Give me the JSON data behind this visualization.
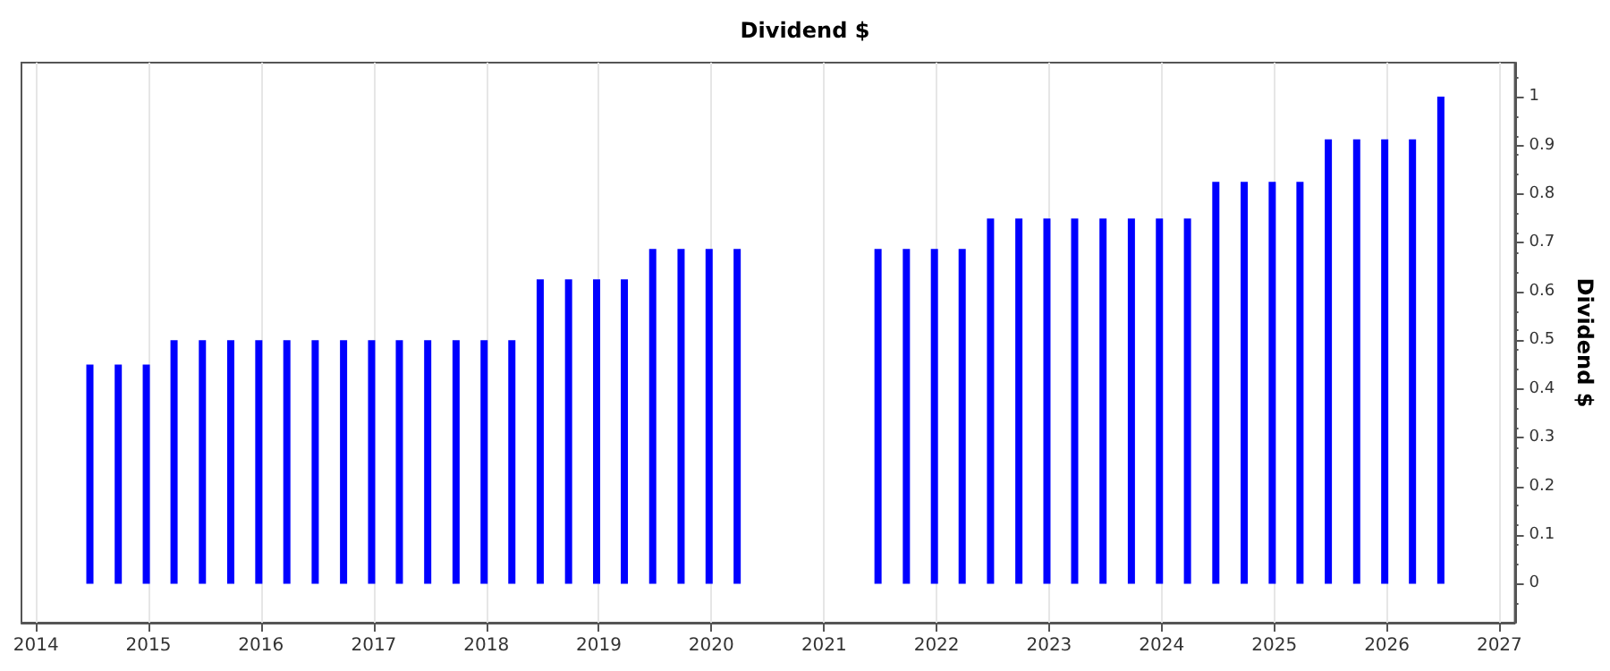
{
  "chart_data": {
    "type": "bar",
    "title": "Dividend $",
    "ylabel": "Dividend $",
    "x": [
      "2014-06-25",
      "2014-09-25",
      "2014-12-25",
      "2015-03-25",
      "2015-06-25",
      "2015-09-25",
      "2015-12-25",
      "2016-03-25",
      "2016-06-25",
      "2016-09-25",
      "2016-12-25",
      "2017-03-25",
      "2017-06-25",
      "2017-09-25",
      "2017-12-25",
      "2018-03-25",
      "2018-06-25",
      "2018-09-25",
      "2018-12-25",
      "2019-03-25",
      "2019-06-25",
      "2019-09-25",
      "2019-12-25",
      "2020-03-25",
      "2021-06-25",
      "2021-09-25",
      "2021-12-25",
      "2022-03-25",
      "2022-06-25",
      "2022-09-25",
      "2022-12-25",
      "2023-03-25",
      "2023-06-25",
      "2023-09-25",
      "2023-12-25",
      "2024-03-25",
      "2024-06-25",
      "2024-09-25",
      "2024-12-25",
      "2025-03-25",
      "2025-06-25",
      "2025-09-25",
      "2025-12-25",
      "2026-03-25",
      "2026-06-25"
    ],
    "values": [
      0.45,
      0.45,
      0.45,
      0.5,
      0.5,
      0.5,
      0.5,
      0.5,
      0.5,
      0.5,
      0.5,
      0.5,
      0.5,
      0.5,
      0.5,
      0.5,
      0.625,
      0.625,
      0.625,
      0.625,
      0.6875,
      0.6875,
      0.6875,
      0.6875,
      0.6875,
      0.6875,
      0.6875,
      0.6875,
      0.75,
      0.75,
      0.75,
      0.75,
      0.75,
      0.75,
      0.75,
      0.75,
      0.825,
      0.825,
      0.825,
      0.825,
      0.9125,
      0.9125,
      0.9125,
      0.9125,
      1.0
    ],
    "color": "#0000ff",
    "xlim": [
      "2013-11-15",
      "2027-02-20"
    ],
    "xticks": [
      "2014",
      "2015",
      "2016",
      "2017",
      "2018",
      "2019",
      "2020",
      "2021",
      "2022",
      "2023",
      "2024",
      "2025",
      "2026",
      "2027"
    ],
    "ylim": [
      -0.08,
      1.07
    ],
    "yticks": [
      0,
      0.1,
      0.2,
      0.3,
      0.4,
      0.5,
      0.6,
      0.7,
      0.8,
      0.9,
      1
    ],
    "grid": "x"
  }
}
